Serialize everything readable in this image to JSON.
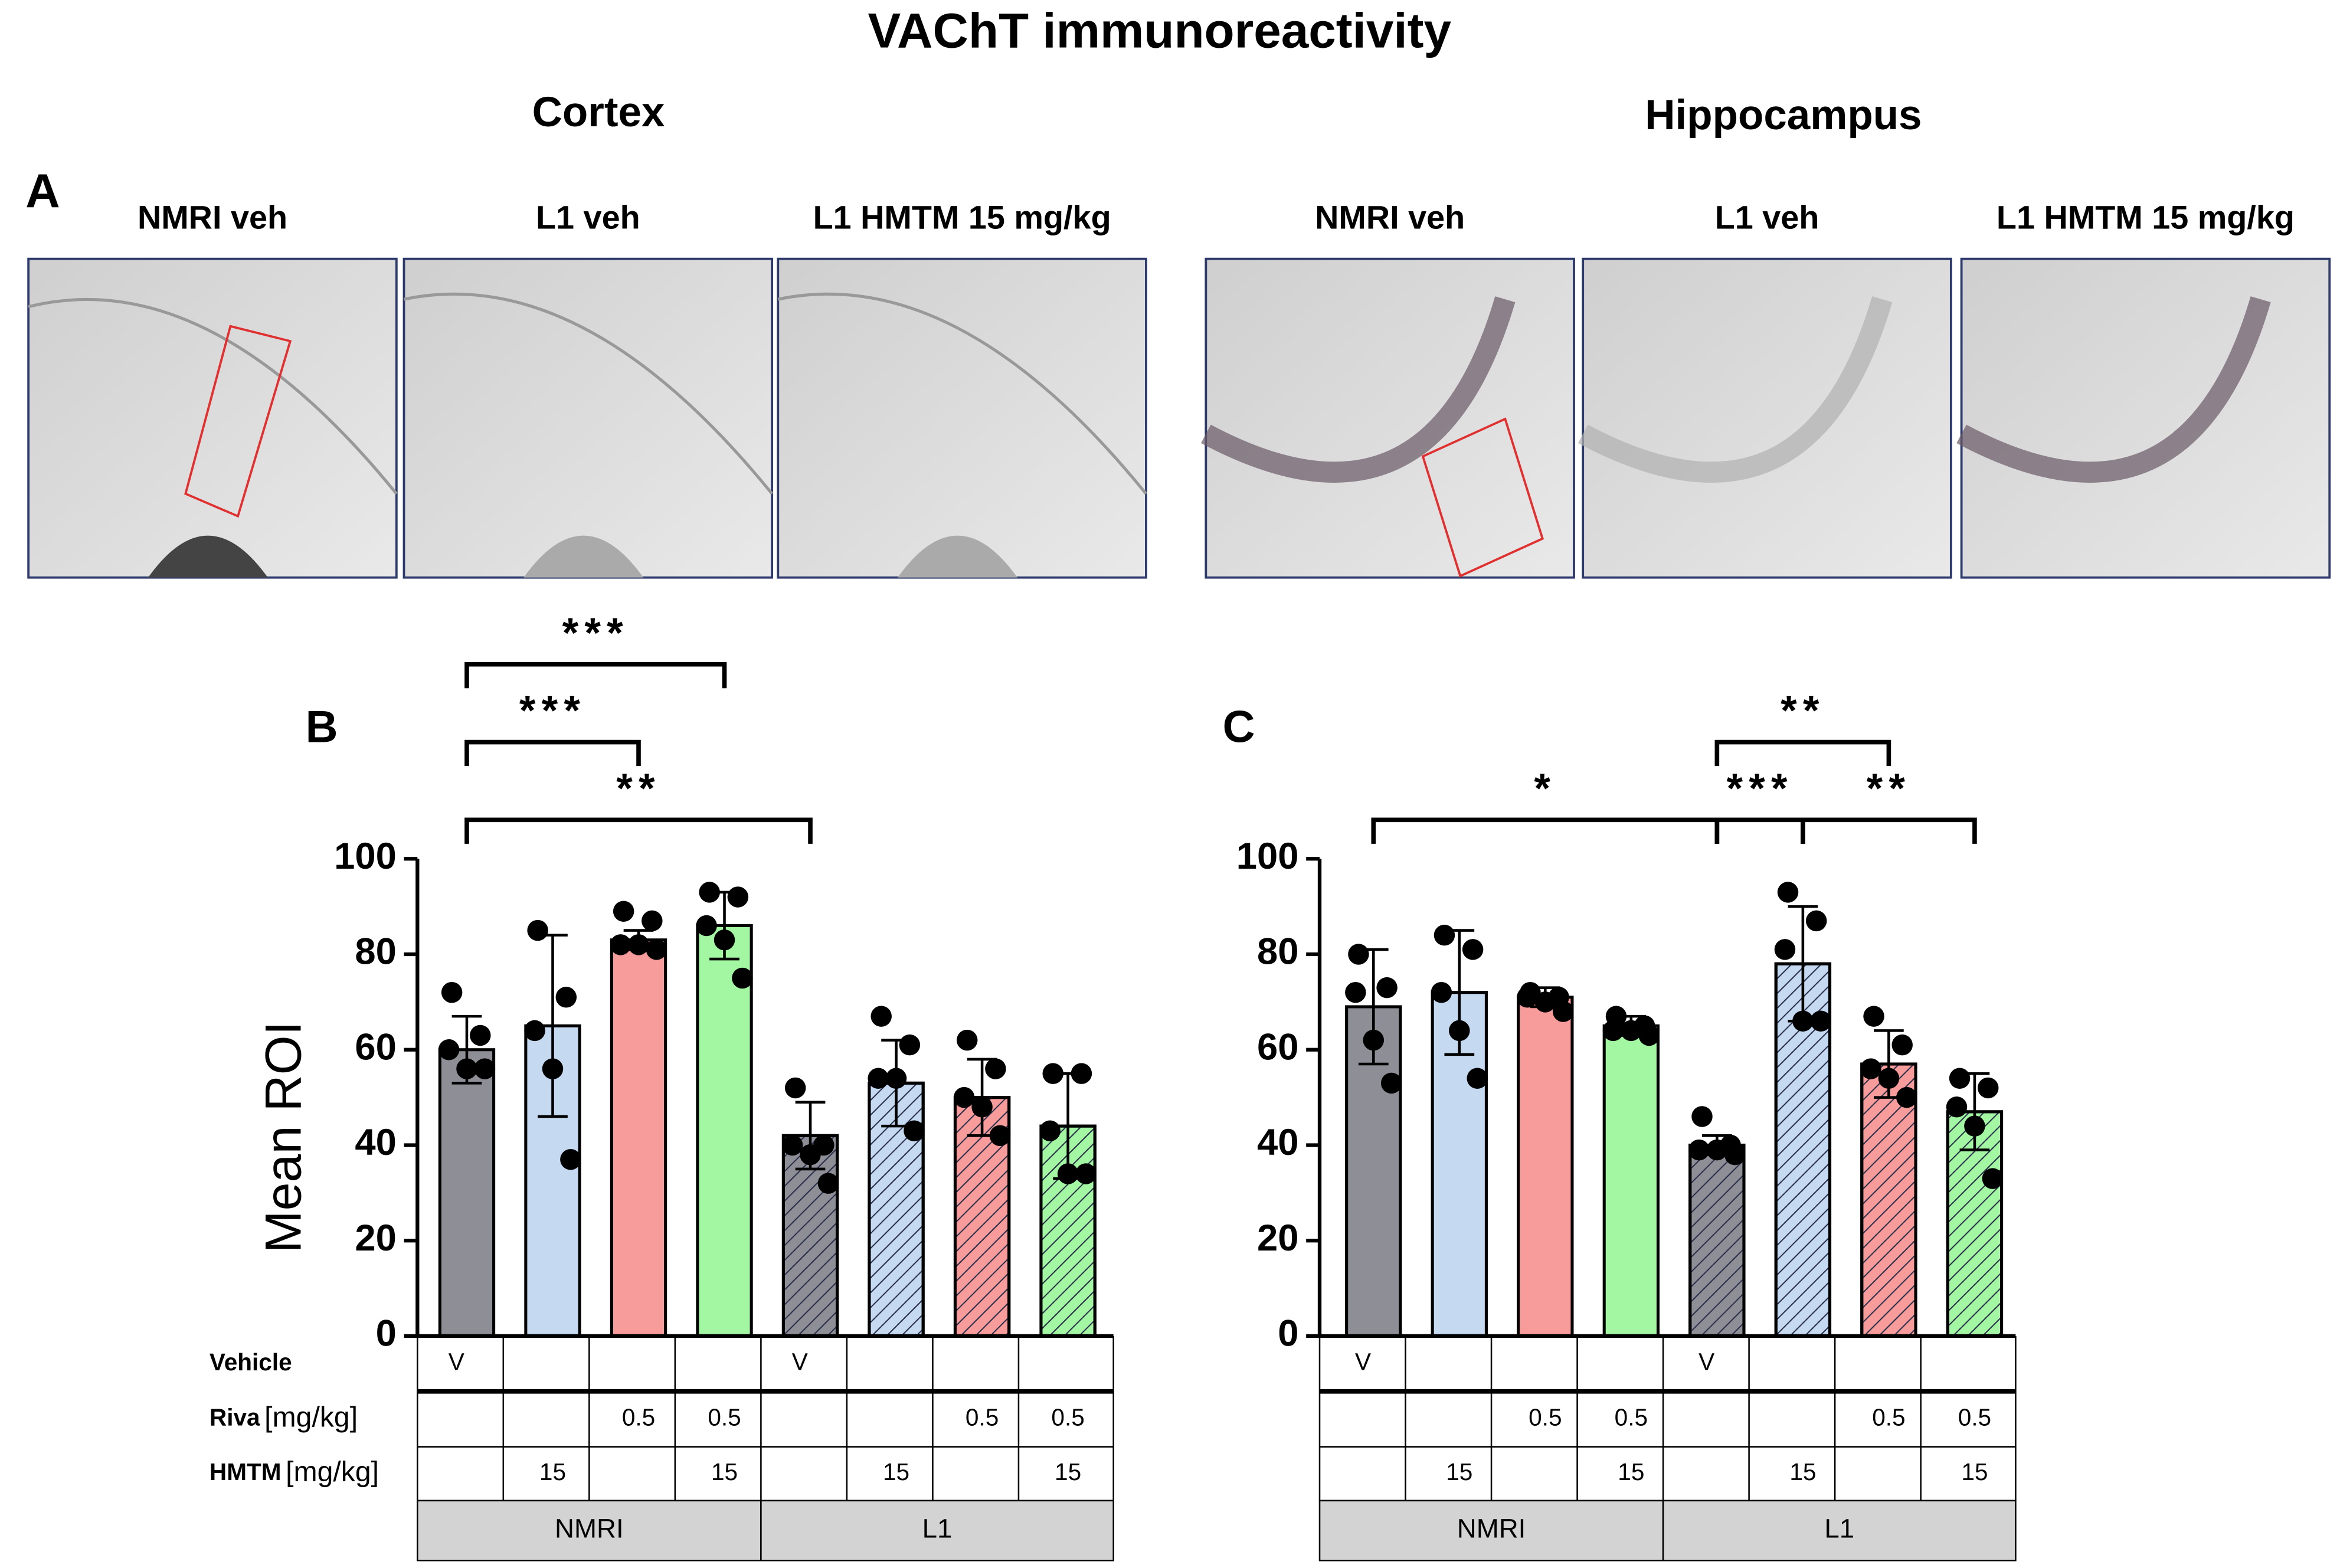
{
  "figure": {
    "title": "VAChT immunoreactivity",
    "panel_a": {
      "label": "A",
      "regions": [
        {
          "name": "Cortex",
          "images": [
            "NMRI veh",
            "L1 veh",
            "L1 HMTM 15 mg/kg"
          ]
        },
        {
          "name": "Hippocampus",
          "images": [
            "NMRI veh",
            "L1 veh",
            "L1 HMTM 15 mg/kg"
          ]
        }
      ]
    }
  },
  "chart_data": [
    {
      "type": "bar",
      "panel": "B",
      "ylabel": "Mean ROI",
      "ylim": [
        0,
        100
      ],
      "yticks": [
        0,
        20,
        40,
        60,
        80,
        100
      ],
      "colors": [
        "#8e8e96",
        "#c5d9f1",
        "#f79b9b",
        "#a3f7a3",
        "#8e8e96",
        "#c5d9f1",
        "#f79b9b",
        "#a3f7a3"
      ],
      "hatched": [
        false,
        false,
        false,
        false,
        true,
        true,
        true,
        true
      ],
      "values": [
        60,
        65,
        83,
        86,
        42,
        53,
        50,
        44
      ],
      "errors": [
        7,
        19,
        2,
        7,
        7,
        9,
        8,
        11
      ],
      "points": [
        [
          72,
          63,
          60,
          56,
          56
        ],
        [
          85,
          71,
          64,
          56,
          37
        ],
        [
          89,
          87,
          82,
          82,
          81
        ],
        [
          93,
          92,
          86,
          83,
          75
        ],
        [
          52,
          40,
          40,
          38,
          32
        ],
        [
          67,
          61,
          54,
          54,
          43
        ],
        [
          62,
          56,
          50,
          48,
          42
        ],
        [
          55,
          55,
          43,
          34,
          34
        ]
      ],
      "significance": [
        {
          "from": 0,
          "to": 4,
          "label": "**"
        },
        {
          "from": 0,
          "to": 2,
          "label": "***"
        },
        {
          "from": 0,
          "to": 3,
          "label": "***"
        }
      ],
      "table": {
        "rows": [
          {
            "label": "Vehicle",
            "cells": [
              "V",
              null,
              null,
              null,
              "V",
              null,
              null,
              null
            ]
          },
          {
            "label": "Riva",
            "unit": "[mg/kg]",
            "cells": [
              null,
              null,
              0.5,
              0.5,
              null,
              null,
              0.5,
              0.5
            ]
          },
          {
            "label": "HMTM",
            "unit": "[mg/kg]",
            "cells": [
              null,
              15,
              null,
              15,
              null,
              15,
              null,
              15
            ]
          }
        ],
        "groups": [
          {
            "label": "NMRI",
            "span": 4
          },
          {
            "label": "L1",
            "span": 4
          }
        ]
      }
    },
    {
      "type": "bar",
      "panel": "C",
      "ylim": [
        0,
        100
      ],
      "yticks": [
        0,
        20,
        40,
        60,
        80,
        100
      ],
      "colors": [
        "#8e8e96",
        "#c5d9f1",
        "#f79b9b",
        "#a3f7a3",
        "#8e8e96",
        "#c5d9f1",
        "#f79b9b",
        "#a3f7a3"
      ],
      "hatched": [
        false,
        false,
        false,
        false,
        true,
        true,
        true,
        true
      ],
      "values": [
        69,
        72,
        71,
        65,
        40,
        78,
        57,
        47
      ],
      "errors": [
        12,
        13,
        2,
        2,
        2,
        12,
        7,
        8
      ],
      "points": [
        [
          80,
          73,
          72,
          62,
          53
        ],
        [
          84,
          81,
          72,
          64,
          54
        ],
        [
          72,
          71,
          71,
          70,
          68
        ],
        [
          67,
          65,
          64,
          64,
          63
        ],
        [
          46,
          40,
          39,
          39,
          38
        ],
        [
          93,
          87,
          81,
          66,
          66
        ],
        [
          67,
          61,
          56,
          54,
          50
        ],
        [
          54,
          52,
          48,
          44,
          33
        ]
      ],
      "significance": [
        {
          "from": 0,
          "to": 4,
          "label": "*"
        },
        {
          "from": 4,
          "to": 5,
          "label": "***"
        },
        {
          "from": 5,
          "to": 7,
          "label": "**"
        },
        {
          "from": 4,
          "to": 6,
          "label": "**"
        }
      ],
      "table": {
        "rows": [
          {
            "cells": [
              "V",
              null,
              null,
              null,
              "V",
              null,
              null,
              null
            ]
          },
          {
            "cells": [
              null,
              null,
              0.5,
              0.5,
              null,
              null,
              0.5,
              0.5
            ]
          },
          {
            "cells": [
              null,
              15,
              null,
              15,
              null,
              15,
              null,
              15
            ]
          }
        ],
        "groups": [
          {
            "label": "NMRI",
            "span": 4
          },
          {
            "label": "L1",
            "span": 4
          }
        ]
      }
    }
  ]
}
